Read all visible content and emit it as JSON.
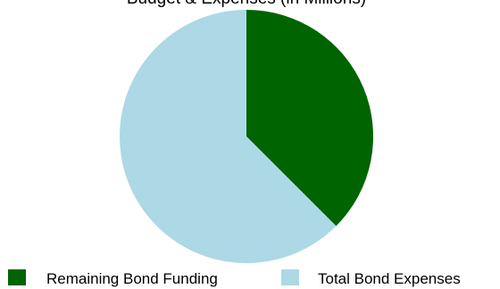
{
  "chart_data": {
    "type": "pie",
    "title": "Budget & Expenses (in Millions)",
    "slices": [
      {
        "label": "Remaining Bond Funding",
        "value": 37.5,
        "color": "#006400"
      },
      {
        "label": "Total Bond Expenses",
        "value": 62.5,
        "color": "#add8e6"
      }
    ],
    "start_angle_deg": 0,
    "direction": "clockwise",
    "legend_position": "bottom"
  }
}
